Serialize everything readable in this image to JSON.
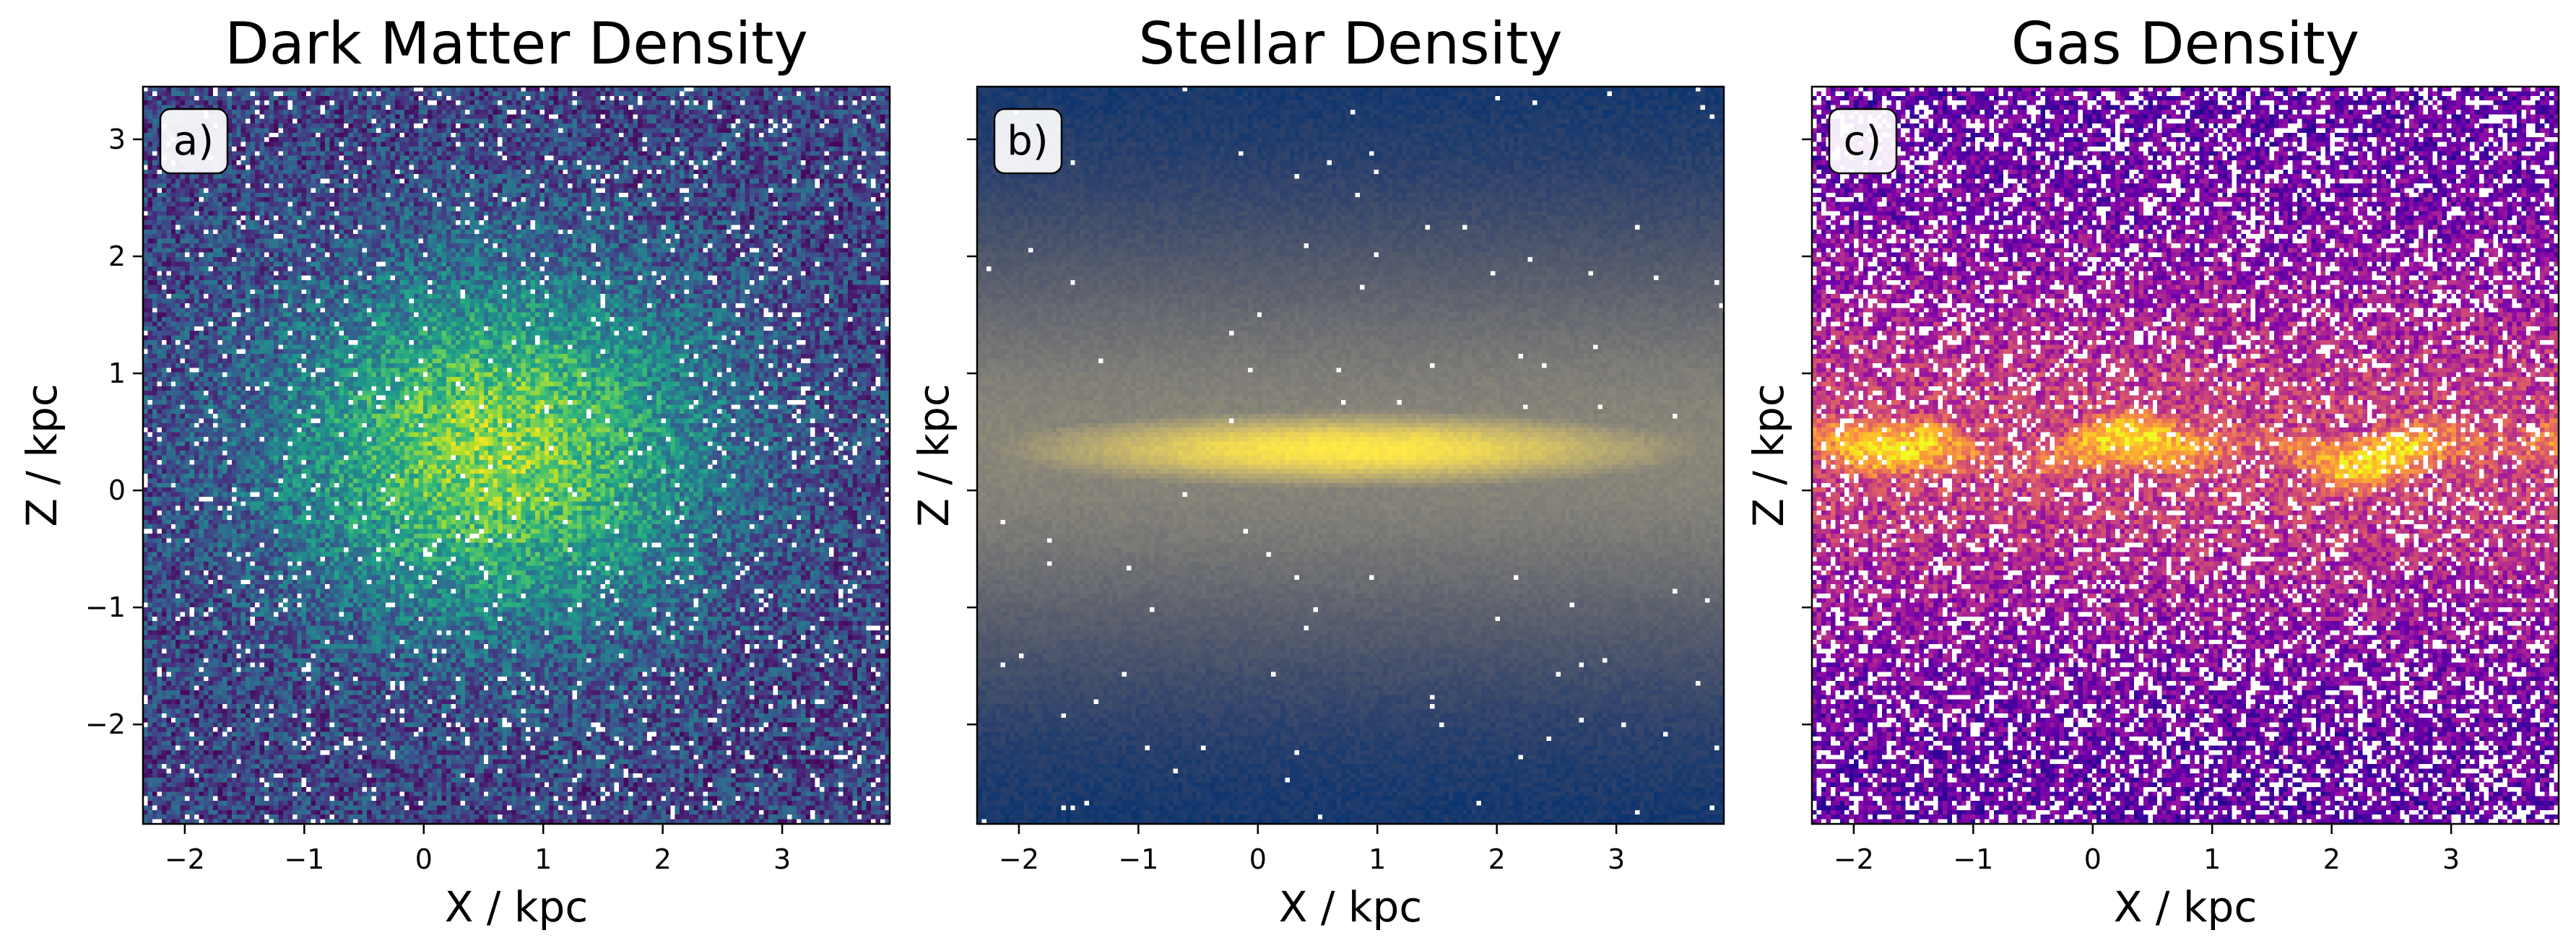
{
  "chart_data": [
    {
      "type": "heatmap",
      "title": "Dark Matter Density",
      "panel_label": "a)",
      "xlabel": "X / kpc",
      "ylabel": "Z / kpc",
      "xlim": [
        -2.35,
        3.9
      ],
      "ylim": [
        -2.85,
        3.45
      ],
      "xticks": [
        -2,
        -1,
        0,
        1,
        2,
        3
      ],
      "yticks": [
        -2,
        -1,
        0,
        1,
        2,
        3
      ],
      "show_yticklabels": true,
      "colormap": "viridis",
      "structure": {
        "center": [
          0.6,
          0.35
        ],
        "spread_x": 1.35,
        "spread_z": 1.1,
        "noise": 0.38,
        "empty_fraction": 0.05
      }
    },
    {
      "type": "heatmap",
      "title": "Stellar Density",
      "panel_label": "b)",
      "xlabel": "X / kpc",
      "ylabel": "Z / kpc",
      "xlim": [
        -2.35,
        3.9
      ],
      "ylim": [
        -2.85,
        3.45
      ],
      "xticks": [
        -2,
        -1,
        0,
        1,
        2,
        3
      ],
      "yticks": [
        -2,
        -1,
        0,
        1,
        2,
        3
      ],
      "show_yticklabels": false,
      "colormap": "cividis",
      "structure": {
        "center": [
          0.75,
          0.35
        ],
        "spread_x": 2.1,
        "spread_z": 0.28,
        "noise": 0.06,
        "empty_fraction": 0.004
      }
    },
    {
      "type": "heatmap",
      "title": "Gas Density",
      "panel_label": "c)",
      "xlabel": "X / kpc",
      "ylabel": "Z / kpc",
      "xlim": [
        -2.35,
        3.9
      ],
      "ylim": [
        -2.85,
        3.45
      ],
      "xticks": [
        -2,
        -1,
        0,
        1,
        2,
        3
      ],
      "yticks": [
        -2,
        -1,
        0,
        1,
        2,
        3
      ],
      "show_yticklabels": false,
      "colormap": "plasma",
      "structure": {
        "center": [
          0.75,
          0.35
        ],
        "spread_x": 3.0,
        "spread_z": 0.22,
        "noise": 0.3,
        "empty_fraction": 0.22
      }
    }
  ]
}
